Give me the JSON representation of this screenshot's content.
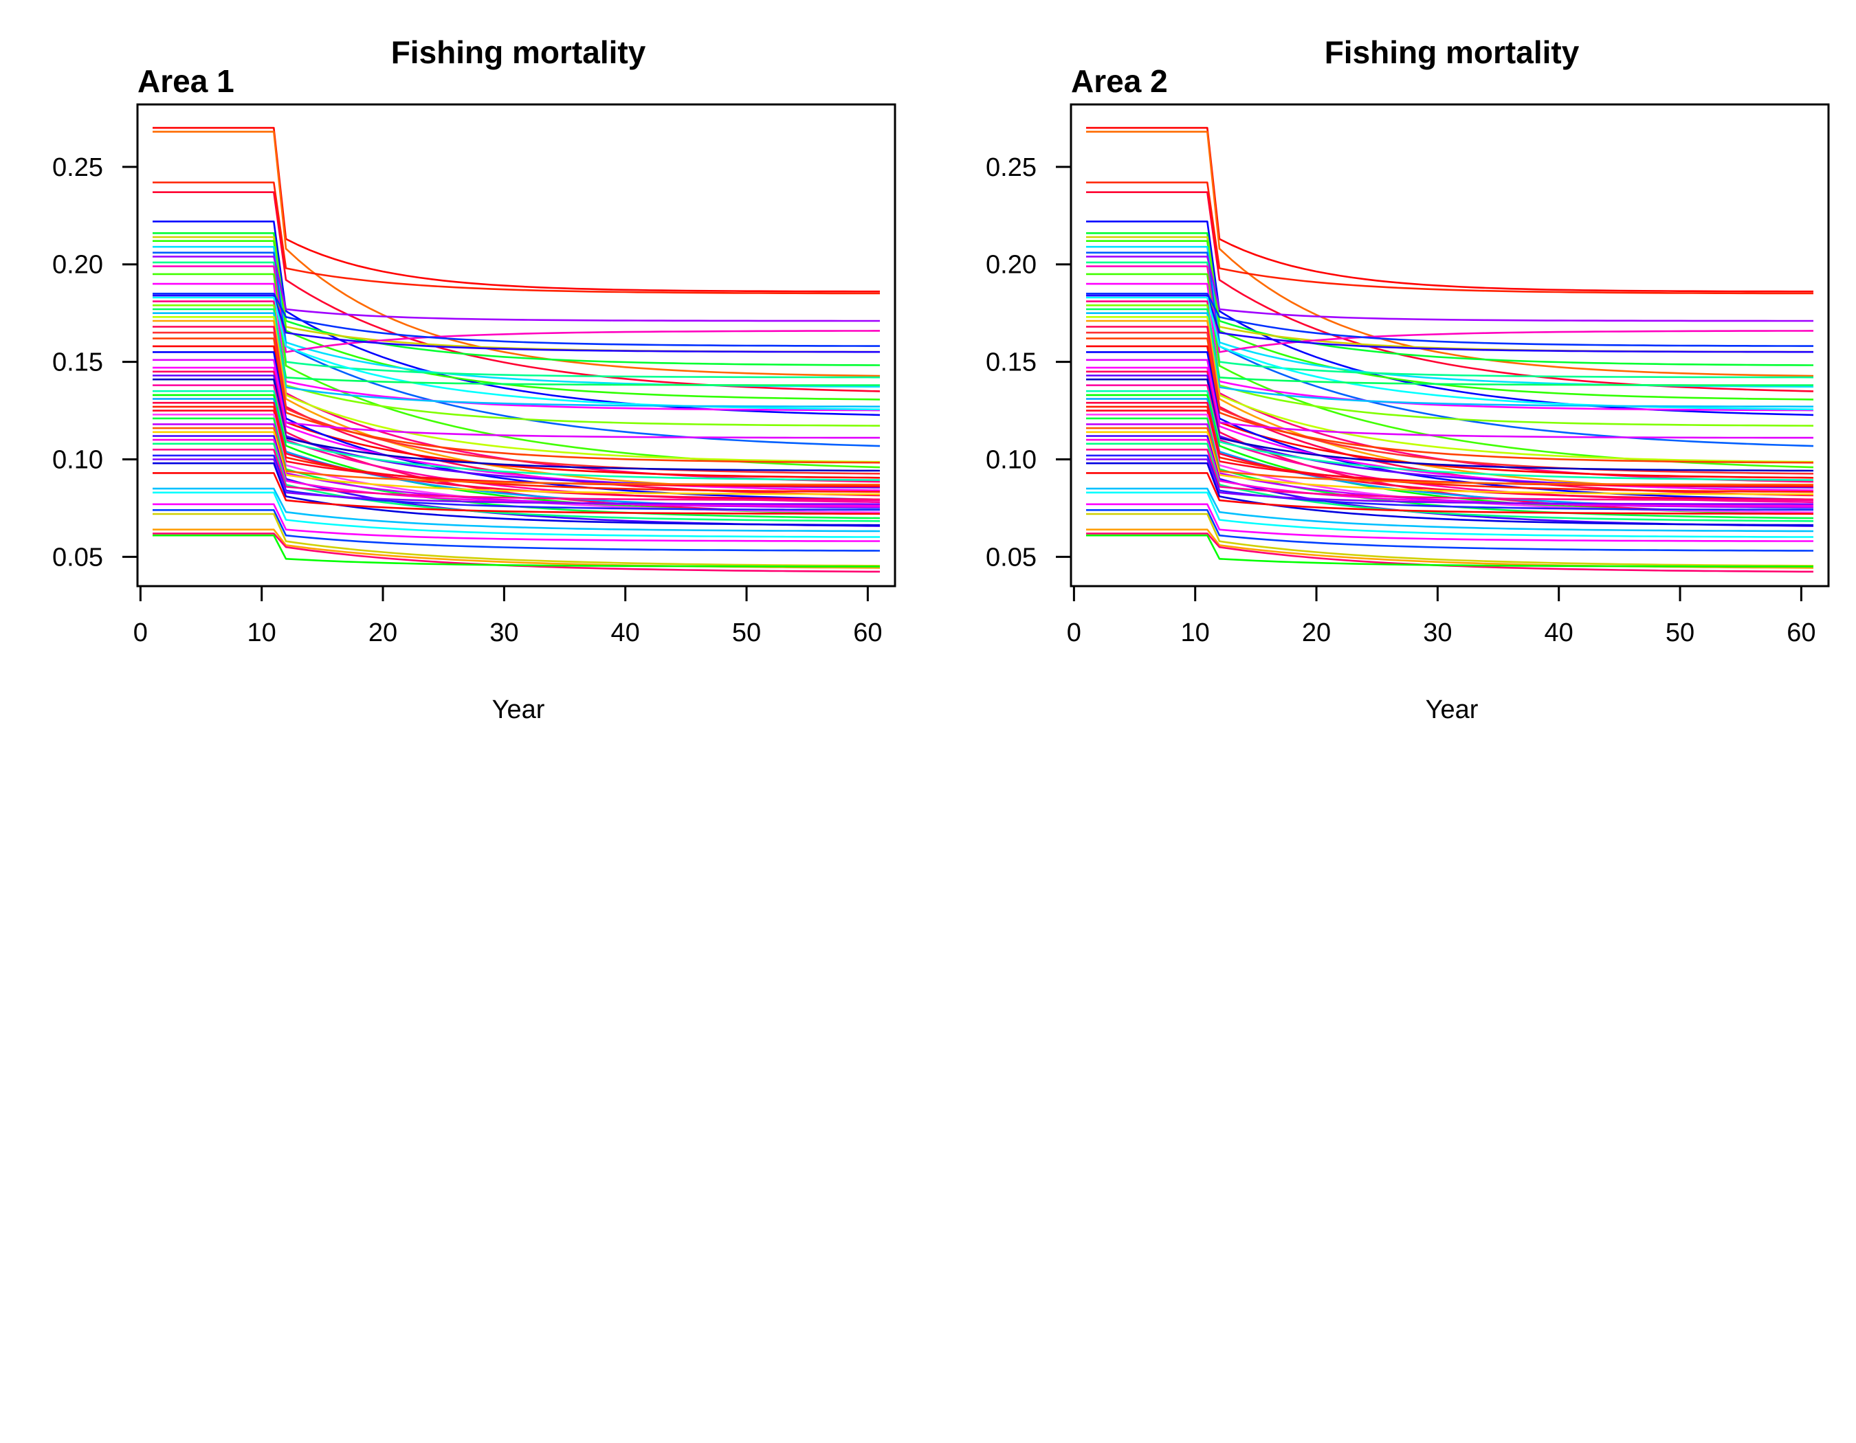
{
  "chart_data": [
    {
      "type": "line",
      "title": "Fishing mortality",
      "subtitle": "Area 1",
      "xlabel": "Year",
      "ylabel": "",
      "xlim": [
        1,
        61
      ],
      "ylim": [
        0.035,
        0.282
      ],
      "xticks": [
        0,
        10,
        20,
        30,
        40,
        50,
        60
      ],
      "yticks": [
        0.05,
        0.1,
        0.15,
        0.2,
        0.25
      ],
      "grid": false,
      "legend": "none",
      "series_encoding": "Each series: constant value 'start' for years 1-11, drops to 'drop' at year 12, then decays exponentially toward 'end' at year 61 (rate 'k').",
      "series": [
        {
          "color": "#ff0000",
          "start": 0.27,
          "drop": 0.213,
          "end": 0.186,
          "k": 0.12
        },
        {
          "color": "#ff6a00",
          "start": 0.268,
          "drop": 0.208,
          "end": 0.142,
          "k": 0.09
        },
        {
          "color": "#ff2000",
          "start": 0.242,
          "drop": 0.198,
          "end": 0.185,
          "k": 0.1
        },
        {
          "color": "#ff0030",
          "start": 0.237,
          "drop": 0.192,
          "end": 0.133,
          "k": 0.07
        },
        {
          "color": "#0000ff",
          "start": 0.222,
          "drop": 0.176,
          "end": 0.121,
          "k": 0.07
        },
        {
          "color": "#00ff30",
          "start": 0.216,
          "drop": 0.171,
          "end": 0.148,
          "k": 0.09
        },
        {
          "color": "#d0d000",
          "start": 0.214,
          "drop": 0.168,
          "end": 0.155,
          "k": 0.1
        },
        {
          "color": "#30ff00",
          "start": 0.212,
          "drop": 0.166,
          "end": 0.13,
          "k": 0.08
        },
        {
          "color": "#00e0ff",
          "start": 0.209,
          "drop": 0.16,
          "end": 0.137,
          "k": 0.09
        },
        {
          "color": "#0060ff",
          "start": 0.206,
          "drop": 0.158,
          "end": 0.104,
          "k": 0.06
        },
        {
          "color": "#a000ff",
          "start": 0.204,
          "drop": 0.177,
          "end": 0.171,
          "k": 0.12
        },
        {
          "color": "#00ff90",
          "start": 0.201,
          "drop": 0.15,
          "end": 0.142,
          "k": 0.1
        },
        {
          "color": "#ff00c0",
          "start": 0.199,
          "drop": 0.155,
          "end": 0.166,
          "k": 0.1
        },
        {
          "color": "#40ff00",
          "start": 0.195,
          "drop": 0.148,
          "end": 0.093,
          "k": 0.06
        },
        {
          "color": "#ff00ff",
          "start": 0.19,
          "drop": 0.14,
          "end": 0.125,
          "k": 0.09
        },
        {
          "color": "#0030ff",
          "start": 0.185,
          "drop": 0.173,
          "end": 0.158,
          "k": 0.1
        },
        {
          "color": "#2000ff",
          "start": 0.184,
          "drop": 0.165,
          "end": 0.155,
          "k": 0.1
        },
        {
          "color": "#00ffff",
          "start": 0.183,
          "drop": 0.158,
          "end": 0.125,
          "k": 0.08
        },
        {
          "color": "#ff0080",
          "start": 0.181,
          "drop": 0.134,
          "end": 0.087,
          "k": 0.07
        },
        {
          "color": "#80ff00",
          "start": 0.179,
          "drop": 0.138,
          "end": 0.117,
          "k": 0.09
        },
        {
          "color": "#00ff60",
          "start": 0.177,
          "drop": 0.142,
          "end": 0.138,
          "k": 0.1
        },
        {
          "color": "#00c0ff",
          "start": 0.175,
          "drop": 0.137,
          "end": 0.127,
          "k": 0.1
        },
        {
          "color": "#c0ff00",
          "start": 0.173,
          "drop": 0.133,
          "end": 0.098,
          "k": 0.08
        },
        {
          "color": "#ffa000",
          "start": 0.171,
          "drop": 0.131,
          "end": 0.082,
          "k": 0.07
        },
        {
          "color": "#ff0050",
          "start": 0.168,
          "drop": 0.127,
          "end": 0.08,
          "k": 0.07
        },
        {
          "color": "#ff3030",
          "start": 0.165,
          "drop": 0.126,
          "end": 0.092,
          "k": 0.08
        },
        {
          "color": "#ff4000",
          "start": 0.162,
          "drop": 0.124,
          "end": 0.098,
          "k": 0.09
        },
        {
          "color": "#ff0000",
          "start": 0.158,
          "drop": 0.119,
          "end": 0.09,
          "k": 0.08
        },
        {
          "color": "#0000ff",
          "start": 0.155,
          "drop": 0.121,
          "end": 0.078,
          "k": 0.07
        },
        {
          "color": "#e000ff",
          "start": 0.151,
          "drop": 0.119,
          "end": 0.111,
          "k": 0.1
        },
        {
          "color": "#ff00ff",
          "start": 0.147,
          "drop": 0.117,
          "end": 0.083,
          "k": 0.07
        },
        {
          "color": "#ff0060",
          "start": 0.145,
          "drop": 0.114,
          "end": 0.071,
          "k": 0.07
        },
        {
          "color": "#6000ff",
          "start": 0.143,
          "drop": 0.112,
          "end": 0.085,
          "k": 0.08
        },
        {
          "color": "#0000c0",
          "start": 0.141,
          "drop": 0.111,
          "end": 0.094,
          "k": 0.09
        },
        {
          "color": "#ff00a0",
          "start": 0.138,
          "drop": 0.11,
          "end": 0.077,
          "k": 0.07
        },
        {
          "color": "#00ffb0",
          "start": 0.135,
          "drop": 0.109,
          "end": 0.089,
          "k": 0.08
        },
        {
          "color": "#00ff00",
          "start": 0.133,
          "drop": 0.107,
          "end": 0.071,
          "k": 0.07
        },
        {
          "color": "#00a0ff",
          "start": 0.131,
          "drop": 0.104,
          "end": 0.074,
          "k": 0.07
        },
        {
          "color": "#ff0040",
          "start": 0.129,
          "drop": 0.103,
          "end": 0.079,
          "k": 0.08
        },
        {
          "color": "#ff2000",
          "start": 0.127,
          "drop": 0.101,
          "end": 0.083,
          "k": 0.08
        },
        {
          "color": "#ff0020",
          "start": 0.125,
          "drop": 0.099,
          "end": 0.086,
          "k": 0.09
        },
        {
          "color": "#ff40ff",
          "start": 0.123,
          "drop": 0.097,
          "end": 0.072,
          "k": 0.07
        },
        {
          "color": "#00ff40",
          "start": 0.121,
          "drop": 0.095,
          "end": 0.069,
          "k": 0.07
        },
        {
          "color": "#c000ff",
          "start": 0.118,
          "drop": 0.093,
          "end": 0.075,
          "k": 0.08
        },
        {
          "color": "#ff6000",
          "start": 0.116,
          "drop": 0.094,
          "end": 0.087,
          "k": 0.1
        },
        {
          "color": "#ffd000",
          "start": 0.114,
          "drop": 0.092,
          "end": 0.082,
          "k": 0.09
        },
        {
          "color": "#4000ff",
          "start": 0.112,
          "drop": 0.09,
          "end": 0.065,
          "k": 0.07
        },
        {
          "color": "#ff00e0",
          "start": 0.11,
          "drop": 0.089,
          "end": 0.076,
          "k": 0.09
        },
        {
          "color": "#00ff80",
          "start": 0.108,
          "drop": 0.087,
          "end": 0.068,
          "k": 0.08
        },
        {
          "color": "#ff0090",
          "start": 0.105,
          "drop": 0.086,
          "end": 0.079,
          "k": 0.09
        },
        {
          "color": "#2020ff",
          "start": 0.102,
          "drop": 0.084,
          "end": 0.074,
          "k": 0.09
        },
        {
          "color": "#8000ff",
          "start": 0.1,
          "drop": 0.083,
          "end": 0.077,
          "k": 0.1
        },
        {
          "color": "#0000e0",
          "start": 0.098,
          "drop": 0.081,
          "end": 0.066,
          "k": 0.08
        },
        {
          "color": "#ff0000",
          "start": 0.093,
          "drop": 0.079,
          "end": 0.072,
          "k": 0.09
        },
        {
          "color": "#00c0ff",
          "start": 0.085,
          "drop": 0.073,
          "end": 0.063,
          "k": 0.08
        },
        {
          "color": "#00ffff",
          "start": 0.083,
          "drop": 0.069,
          "end": 0.06,
          "k": 0.08
        },
        {
          "color": "#ff00ff",
          "start": 0.077,
          "drop": 0.064,
          "end": 0.058,
          "k": 0.09
        },
        {
          "color": "#0040ff",
          "start": 0.074,
          "drop": 0.061,
          "end": 0.053,
          "k": 0.08
        },
        {
          "color": "#d0d000",
          "start": 0.072,
          "drop": 0.058,
          "end": 0.045,
          "k": 0.07
        },
        {
          "color": "#ffa000",
          "start": 0.064,
          "drop": 0.056,
          "end": 0.044,
          "k": 0.07
        },
        {
          "color": "#ff0070",
          "start": 0.062,
          "drop": 0.055,
          "end": 0.042,
          "k": 0.07
        },
        {
          "color": "#00ff00",
          "start": 0.061,
          "drop": 0.049,
          "end": 0.045,
          "k": 0.09
        }
      ]
    },
    {
      "type": "line",
      "title": "Fishing mortality",
      "subtitle": "Area 2",
      "xlabel": "Year",
      "ylabel": "",
      "xlim": [
        1,
        61
      ],
      "ylim": [
        0.035,
        0.282
      ],
      "xticks": [
        0,
        10,
        20,
        30,
        40,
        50,
        60
      ],
      "yticks": [
        0.05,
        0.1,
        0.15,
        0.2,
        0.25
      ],
      "grid": false,
      "legend": "none",
      "series_ref": "identical to Area 1 series"
    }
  ]
}
